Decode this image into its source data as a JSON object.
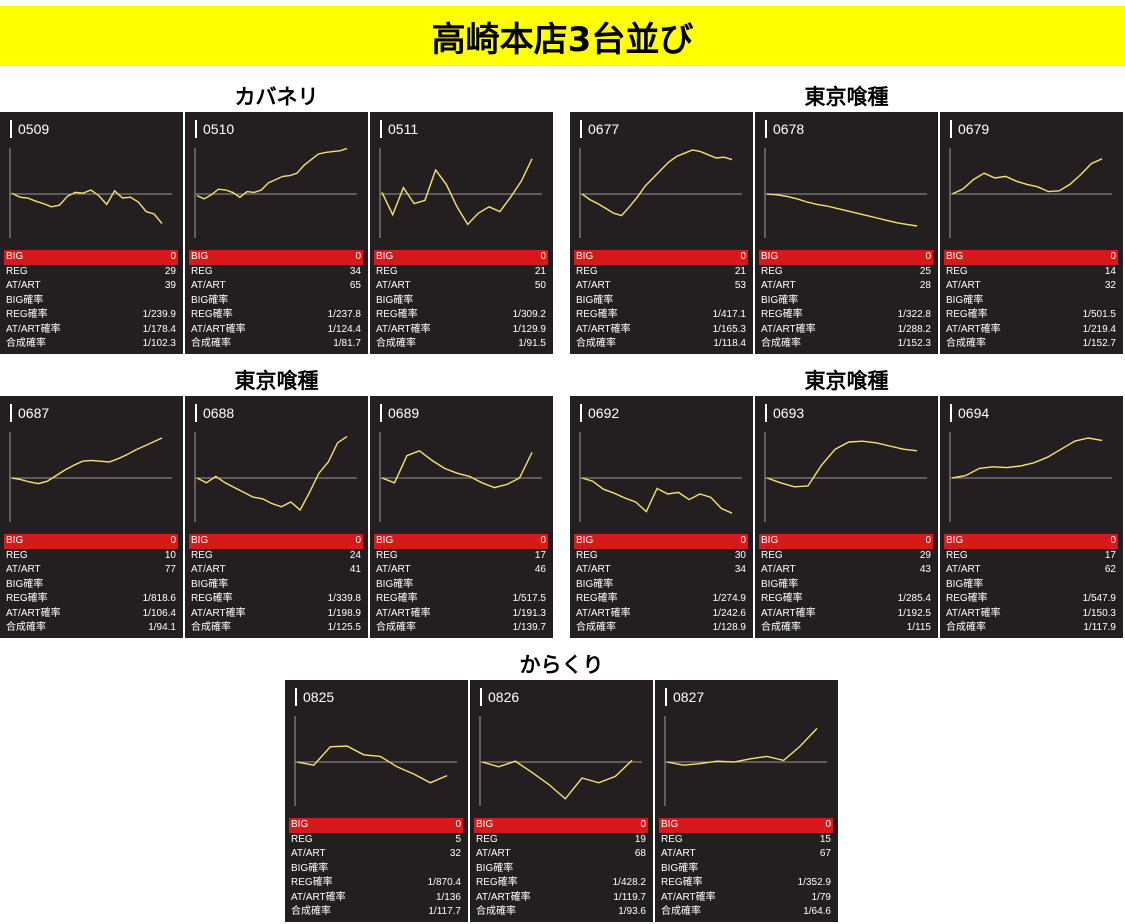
{
  "title": "高崎本店3台並び",
  "stat_labels": {
    "big": "BIG",
    "reg": "REG",
    "at_art": "AT/ART",
    "big_prob": "BIG確率",
    "reg_prob": "REG確率",
    "at_art_prob": "AT/ART確率",
    "combined_prob": "合成確率"
  },
  "colors": {
    "banner": "#ffff00",
    "panel_bg": "#231f20",
    "graph_line": "#f5e26a",
    "big_row": "#d7191b"
  },
  "groups": [
    {
      "title": "カバネリ",
      "machines": [
        {
          "id": "0509",
          "big": "0",
          "reg": "29",
          "at_art": "39",
          "big_prob": "",
          "reg_prob": "1/239.9",
          "at_art_prob": "1/178.4",
          "combined_prob": "1/102.3",
          "graph": [
            0.05,
            -0.2,
            -0.25,
            -0.45,
            -0.6,
            -0.8,
            -0.7,
            -0.15,
            0.1,
            0.05,
            0.25,
            -0.1,
            -0.65,
            0.2,
            -0.25,
            -0.2,
            -0.5,
            -1.1,
            -1.25,
            -1.85
          ]
        },
        {
          "id": "0510",
          "big": "0",
          "reg": "34",
          "at_art": "65",
          "big_prob": "",
          "reg_prob": "1/237.8",
          "at_art_prob": "1/124.4",
          "combined_prob": "1/81.7",
          "graph": [
            -0.1,
            -0.3,
            -0.05,
            0.3,
            0.25,
            0.1,
            -0.2,
            0.15,
            0.1,
            0.25,
            0.7,
            0.9,
            1.1,
            1.15,
            1.3,
            1.8,
            2.15,
            2.5,
            2.6,
            2.65,
            2.7,
            2.85
          ]
        },
        {
          "id": "0511",
          "big": "0",
          "reg": "21",
          "at_art": "50",
          "big_prob": "",
          "reg_prob": "1/309.2",
          "at_art_prob": "1/129.9",
          "combined_prob": "1/91.5",
          "graph": [
            0.1,
            -1.3,
            0.4,
            -0.6,
            -0.4,
            1.5,
            0.6,
            -0.8,
            -1.9,
            -1.2,
            -0.8,
            -1.1,
            -0.2,
            0.8,
            2.2
          ]
        }
      ]
    },
    {
      "title": "東京喰種",
      "machines": [
        {
          "id": "0677",
          "big": "0",
          "reg": "21",
          "at_art": "53",
          "big_prob": "",
          "reg_prob": "1/417.1",
          "at_art_prob": "1/165.3",
          "combined_prob": "1/118.4",
          "graph": [
            0.0,
            -0.35,
            -0.6,
            -0.9,
            -1.2,
            -1.35,
            -0.8,
            -0.2,
            0.5,
            1.0,
            1.5,
            2.0,
            2.35,
            2.55,
            2.75,
            2.65,
            2.45,
            2.25,
            2.3,
            2.15
          ]
        },
        {
          "id": "0678",
          "big": "0",
          "reg": "25",
          "at_art": "28",
          "big_prob": "",
          "reg_prob": "1/322.8",
          "at_art_prob": "1/288.2",
          "combined_prob": "1/152.3",
          "graph": [
            0.0,
            -0.05,
            -0.15,
            -0.3,
            -0.5,
            -0.65,
            -0.75,
            -0.9,
            -1.05,
            -1.2,
            -1.35,
            -1.5,
            -1.65,
            -1.8,
            -1.9,
            -2.0
          ]
        },
        {
          "id": "0679",
          "big": "0",
          "reg": "14",
          "at_art": "32",
          "big_prob": "",
          "reg_prob": "1/501.5",
          "at_art_prob": "1/219.4",
          "combined_prob": "1/152.7",
          "graph": [
            0.0,
            0.3,
            0.9,
            1.3,
            1.0,
            1.1,
            0.8,
            0.6,
            0.45,
            0.15,
            0.2,
            0.6,
            1.2,
            1.9,
            2.2
          ]
        }
      ]
    },
    {
      "title": "東京喰種",
      "machines": [
        {
          "id": "0687",
          "big": "0",
          "reg": "10",
          "at_art": "77",
          "big_prob": "",
          "reg_prob": "1/818.6",
          "at_art_prob": "1/106.4",
          "combined_prob": "1/94.1",
          "graph": [
            0.0,
            -0.1,
            -0.25,
            -0.35,
            -0.2,
            0.15,
            0.5,
            0.8,
            1.05,
            1.1,
            1.05,
            1.0,
            1.2,
            1.45,
            1.75,
            2.0,
            2.25,
            2.5
          ]
        },
        {
          "id": "0688",
          "big": "0",
          "reg": "24",
          "at_art": "41",
          "big_prob": "",
          "reg_prob": "1/339.8",
          "at_art_prob": "1/198.9",
          "combined_prob": "1/125.5",
          "graph": [
            0.0,
            -0.3,
            0.1,
            -0.3,
            -0.6,
            -0.9,
            -1.2,
            -1.3,
            -1.6,
            -1.8,
            -1.5,
            -2.0,
            -0.9,
            0.3,
            1.0,
            2.2,
            2.6
          ]
        },
        {
          "id": "0689",
          "big": "0",
          "reg": "17",
          "at_art": "46",
          "big_prob": "",
          "reg_prob": "1/517.5",
          "at_art_prob": "1/191.3",
          "combined_prob": "1/139.7",
          "graph": [
            0.0,
            -0.3,
            1.4,
            1.7,
            1.1,
            0.6,
            0.3,
            0.1,
            -0.3,
            -0.6,
            -0.4,
            0.0,
            1.6
          ]
        }
      ]
    },
    {
      "title": "東京喰種",
      "machines": [
        {
          "id": "0692",
          "big": "0",
          "reg": "30",
          "at_art": "34",
          "big_prob": "",
          "reg_prob": "1/274.9",
          "at_art_prob": "1/242.6",
          "combined_prob": "1/128.9",
          "graph": [
            0.0,
            -0.2,
            -0.7,
            -0.95,
            -1.25,
            -1.5,
            -2.1,
            -0.65,
            -1.0,
            -0.9,
            -1.35,
            -1.0,
            -1.2,
            -1.9,
            -2.2
          ]
        },
        {
          "id": "0693",
          "big": "0",
          "reg": "29",
          "at_art": "43",
          "big_prob": "",
          "reg_prob": "1/285.4",
          "at_art_prob": "1/192.5",
          "combined_prob": "1/115",
          "graph": [
            0.0,
            -0.3,
            -0.55,
            -0.5,
            0.8,
            1.8,
            2.25,
            2.3,
            2.2,
            2.0,
            1.8,
            1.7
          ]
        },
        {
          "id": "0694",
          "big": "0",
          "reg": "17",
          "at_art": "62",
          "big_prob": "",
          "reg_prob": "1/547.9",
          "at_art_prob": "1/150.3",
          "combined_prob": "1/117.9",
          "graph": [
            0.0,
            0.15,
            0.6,
            0.7,
            0.65,
            0.75,
            0.95,
            1.3,
            1.8,
            2.3,
            2.5,
            2.35
          ]
        }
      ]
    },
    {
      "title": "からくり",
      "machines": [
        {
          "id": "0825",
          "big": "0",
          "reg": "5",
          "at_art": "32",
          "big_prob": "",
          "reg_prob": "1/870.4",
          "at_art_prob": "1/136",
          "combined_prob": "1/117.7",
          "graph": [
            0.0,
            -0.2,
            0.95,
            1.0,
            0.45,
            0.35,
            -0.3,
            -0.75,
            -1.3,
            -0.85
          ]
        },
        {
          "id": "0826",
          "big": "0",
          "reg": "19",
          "at_art": "68",
          "big_prob": "",
          "reg_prob": "1/428.2",
          "at_art_prob": "1/119.7",
          "combined_prob": "1/93.6",
          "graph": [
            0.0,
            -0.3,
            0.05,
            -0.65,
            -1.4,
            -2.3,
            -1.0,
            -1.3,
            -0.9,
            0.1
          ]
        },
        {
          "id": "0827",
          "big": "0",
          "reg": "15",
          "at_art": "67",
          "big_prob": "",
          "reg_prob": "1/352.9",
          "at_art_prob": "1/79",
          "combined_prob": "1/64.6",
          "graph": [
            0.0,
            -0.2,
            -0.1,
            0.05,
            0.0,
            0.2,
            0.35,
            0.1,
            1.0,
            2.1
          ]
        }
      ]
    }
  ]
}
